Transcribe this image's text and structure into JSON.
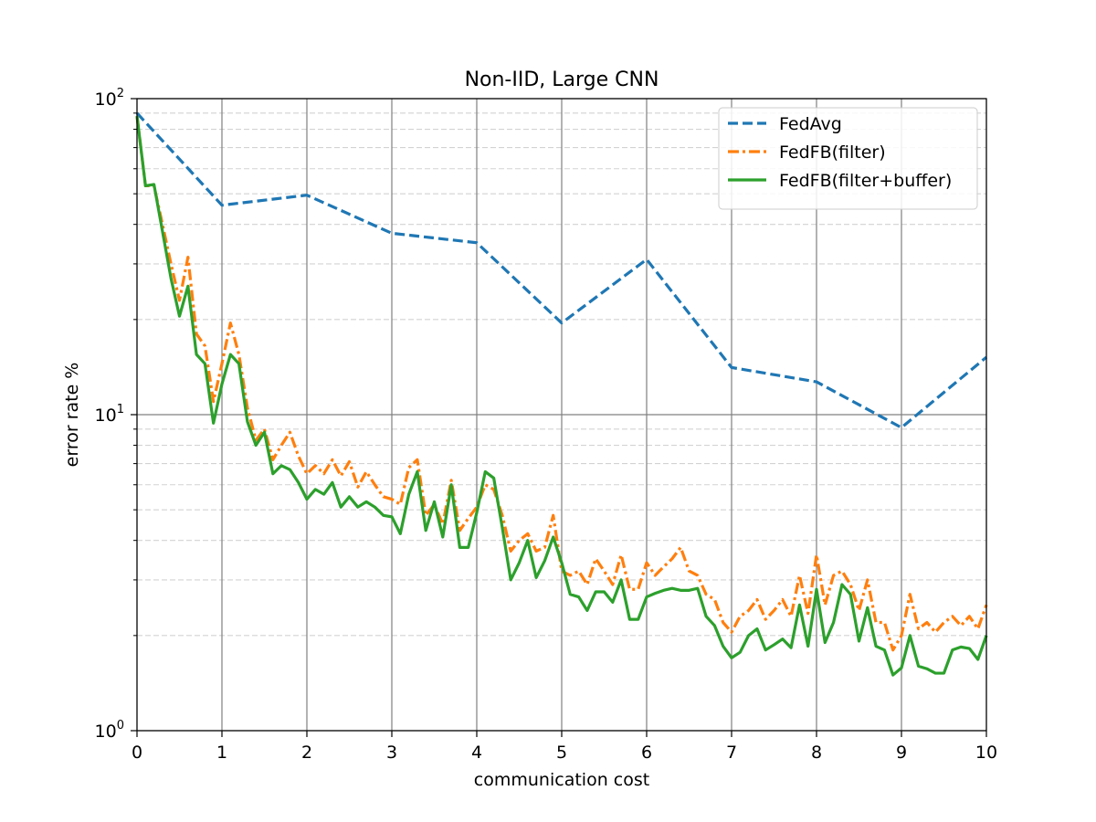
{
  "chart_data": {
    "type": "line",
    "title": "Non-IID, Large CNN",
    "xlabel": "communication cost",
    "ylabel": "error rate %",
    "xlim": [
      0,
      10
    ],
    "ylim": [
      1,
      100
    ],
    "yscale": "log",
    "grid": true,
    "legend_position": "top-right",
    "x_ticks": [
      "0",
      "1",
      "2",
      "3",
      "4",
      "5",
      "6",
      "7",
      "8",
      "9",
      "10"
    ],
    "y_ticks": [
      {
        "value": 1,
        "base": "10",
        "exp": "0"
      },
      {
        "value": 10,
        "base": "10",
        "exp": "1"
      },
      {
        "value": 100,
        "base": "10",
        "exp": "2"
      }
    ],
    "series": [
      {
        "name": "FedAvg",
        "color": "#1f77b4",
        "style": "dashed",
        "x": [
          0,
          1,
          2,
          3,
          4,
          5,
          6,
          7,
          8,
          9,
          10
        ],
        "y": [
          90,
          46,
          49.5,
          37.5,
          35,
          19.5,
          31,
          14.1,
          12.7,
          9.1,
          15.2
        ]
      },
      {
        "name": "FedFB(filter)",
        "color": "#ff7f0e",
        "style": "dashdot",
        "x": [
          0,
          0.1,
          0.2,
          0.3,
          0.4,
          0.5,
          0.6,
          0.7,
          0.8,
          0.9,
          1.0,
          1.1,
          1.2,
          1.3,
          1.4,
          1.5,
          1.6,
          1.7,
          1.8,
          1.9,
          2.0,
          2.1,
          2.2,
          2.3,
          2.4,
          2.5,
          2.6,
          2.7,
          2.8,
          2.9,
          3.0,
          3.1,
          3.2,
          3.3,
          3.4,
          3.5,
          3.6,
          3.7,
          3.8,
          3.9,
          4.0,
          4.1,
          4.2,
          4.3,
          4.4,
          4.5,
          4.6,
          4.7,
          4.8,
          4.9,
          5.0,
          5.1,
          5.2,
          5.3,
          5.4,
          5.5,
          5.6,
          5.7,
          5.8,
          5.9,
          6.0,
          6.1,
          6.2,
          6.3,
          6.4,
          6.5,
          6.6,
          6.7,
          6.8,
          6.9,
          7.0,
          7.1,
          7.2,
          7.3,
          7.4,
          7.5,
          7.6,
          7.7,
          7.8,
          7.9,
          8.0,
          8.1,
          8.2,
          8.3,
          8.4,
          8.5,
          8.6,
          8.7,
          8.8,
          8.9,
          9.0,
          9.1,
          9.2,
          9.3,
          9.4,
          9.5,
          9.6,
          9.7,
          9.8,
          9.9,
          10.0
        ],
        "y": [
          88,
          53,
          53,
          40,
          30,
          23,
          31.5,
          18,
          16.5,
          11,
          14.5,
          19.5,
          15.5,
          10.5,
          8.3,
          9,
          7.2,
          8,
          8.8,
          7.4,
          6.5,
          6.9,
          6.5,
          7.2,
          6.4,
          7.1,
          5.9,
          6.6,
          6,
          5.5,
          5.4,
          5.2,
          6.8,
          7.2,
          4.8,
          5.2,
          4.5,
          6.2,
          4.3,
          4.7,
          5.1,
          6,
          5.8,
          4.8,
          3.7,
          4,
          4.2,
          3.7,
          3.8,
          4.8,
          3.2,
          3.1,
          3.2,
          2.9,
          3.5,
          3.2,
          2.9,
          3.6,
          2.8,
          2.8,
          3.4,
          3.1,
          3.3,
          3.5,
          3.8,
          3.2,
          3.1,
          2.7,
          2.6,
          2.2,
          2.05,
          2.3,
          2.4,
          2.6,
          2.25,
          2.4,
          2.6,
          2.3,
          3.1,
          2.35,
          3.6,
          2.5,
          3.1,
          3.2,
          2.9,
          2.4,
          3,
          2.2,
          2.2,
          1.8,
          2,
          2.7,
          2.1,
          2.2,
          2.05,
          2.2,
          2.3,
          2.15,
          2.3,
          2.1,
          2.5
        ]
      },
      {
        "name": "FedFB(filter+buffer)",
        "color": "#2ca02c",
        "style": "solid",
        "x": [
          0,
          0.1,
          0.2,
          0.3,
          0.4,
          0.5,
          0.6,
          0.7,
          0.8,
          0.9,
          1.0,
          1.1,
          1.2,
          1.3,
          1.4,
          1.5,
          1.6,
          1.7,
          1.8,
          1.9,
          2.0,
          2.1,
          2.2,
          2.3,
          2.4,
          2.5,
          2.6,
          2.7,
          2.8,
          2.9,
          3.0,
          3.1,
          3.2,
          3.3,
          3.4,
          3.5,
          3.6,
          3.7,
          3.8,
          3.9,
          4.0,
          4.1,
          4.2,
          4.3,
          4.4,
          4.5,
          4.6,
          4.7,
          4.8,
          4.9,
          5.0,
          5.1,
          5.2,
          5.3,
          5.4,
          5.5,
          5.6,
          5.7,
          5.8,
          5.9,
          6.0,
          6.1,
          6.2,
          6.3,
          6.4,
          6.5,
          6.6,
          6.7,
          6.8,
          6.9,
          7.0,
          7.1,
          7.2,
          7.3,
          7.4,
          7.5,
          7.6,
          7.7,
          7.8,
          7.9,
          8.0,
          8.1,
          8.2,
          8.3,
          8.4,
          8.5,
          8.6,
          8.7,
          8.8,
          8.9,
          9.0,
          9.1,
          9.2,
          9.3,
          9.4,
          9.5,
          9.6,
          9.7,
          9.8,
          9.9,
          10.0
        ],
        "y": [
          88,
          53,
          53.5,
          38,
          27,
          20.5,
          25.5,
          15.5,
          14.5,
          9.4,
          12.5,
          15.5,
          14.5,
          9.5,
          8,
          8.8,
          6.5,
          6.9,
          6.7,
          6.1,
          5.4,
          5.8,
          5.6,
          6.1,
          5.1,
          5.5,
          5.1,
          5.3,
          5.1,
          4.8,
          4.75,
          4.2,
          5.6,
          6.6,
          4.3,
          5.3,
          4.1,
          6,
          3.8,
          3.8,
          4.9,
          6.6,
          6.3,
          4.4,
          3,
          3.4,
          4,
          3.05,
          3.45,
          4.1,
          3.4,
          2.7,
          2.65,
          2.4,
          2.75,
          2.75,
          2.55,
          3,
          2.25,
          2.25,
          2.65,
          2.72,
          2.78,
          2.82,
          2.78,
          2.78,
          2.82,
          2.3,
          2.15,
          1.85,
          1.7,
          1.77,
          2,
          2.1,
          1.8,
          1.87,
          1.95,
          1.83,
          2.5,
          1.85,
          2.8,
          1.9,
          2.2,
          2.9,
          2.7,
          1.92,
          2.45,
          1.85,
          1.8,
          1.5,
          1.58,
          2,
          1.6,
          1.57,
          1.52,
          1.52,
          1.8,
          1.84,
          1.82,
          1.68,
          2
        ]
      }
    ]
  }
}
